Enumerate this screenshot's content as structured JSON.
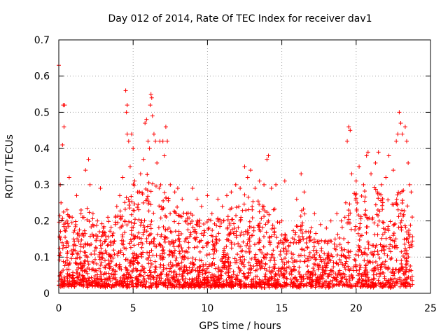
{
  "chart_data": {
    "type": "scatter",
    "title": "Day 012 of 2014, Rate Of TEC Index for receiver dav1",
    "xlabel": "GPS time / hours",
    "ylabel": "ROTI / TECUs",
    "xlim": [
      0,
      25
    ],
    "ylim": [
      0,
      0.7
    ],
    "xticks": [
      0,
      5,
      10,
      15,
      20,
      25
    ],
    "yticks": [
      0,
      0.1,
      0.2,
      0.3,
      0.4,
      0.5,
      0.6,
      0.7
    ],
    "xtick_labels": [
      "0",
      "5",
      "10",
      "15",
      "20",
      "25"
    ],
    "ytick_labels": [
      "0",
      "0.1",
      "0.2",
      "0.3",
      "0.4",
      "0.5",
      "0.6",
      "0.7"
    ],
    "grid": true,
    "marker": "+",
    "color": "#ff0000",
    "series": [
      {
        "name": "dav1",
        "points": [
          [
            0.0,
            0.63
          ],
          [
            0.1,
            0.3
          ],
          [
            0.15,
            0.25
          ],
          [
            0.25,
            0.41
          ],
          [
            0.3,
            0.52
          ],
          [
            0.35,
            0.46
          ],
          [
            0.4,
            0.52
          ],
          [
            0.5,
            0.18
          ],
          [
            0.7,
            0.32
          ],
          [
            0.9,
            0.21
          ],
          [
            1.0,
            0.15
          ],
          [
            1.2,
            0.27
          ],
          [
            1.5,
            0.23
          ],
          [
            1.8,
            0.34
          ],
          [
            2.0,
            0.37
          ],
          [
            2.1,
            0.3
          ],
          [
            2.3,
            0.22
          ],
          [
            2.6,
            0.2
          ],
          [
            2.8,
            0.29
          ],
          [
            3.0,
            0.18
          ],
          [
            3.3,
            0.21
          ],
          [
            3.6,
            0.16
          ],
          [
            3.9,
            0.24
          ],
          [
            4.1,
            0.27
          ],
          [
            4.3,
            0.32
          ],
          [
            4.5,
            0.56
          ],
          [
            4.6,
            0.52
          ],
          [
            4.55,
            0.5
          ],
          [
            4.6,
            0.44
          ],
          [
            4.7,
            0.42
          ],
          [
            4.8,
            0.35
          ],
          [
            4.9,
            0.44
          ],
          [
            5.0,
            0.4
          ],
          [
            5.1,
            0.31
          ],
          [
            5.3,
            0.28
          ],
          [
            5.5,
            0.33
          ],
          [
            5.7,
            0.37
          ],
          [
            5.8,
            0.47
          ],
          [
            5.9,
            0.48
          ],
          [
            6.0,
            0.42
          ],
          [
            6.1,
            0.4
          ],
          [
            6.15,
            0.52
          ],
          [
            6.2,
            0.55
          ],
          [
            6.25,
            0.54
          ],
          [
            6.3,
            0.49
          ],
          [
            6.4,
            0.44
          ],
          [
            6.5,
            0.42
          ],
          [
            6.6,
            0.36
          ],
          [
            6.8,
            0.42
          ],
          [
            7.0,
            0.42
          ],
          [
            7.1,
            0.38
          ],
          [
            7.2,
            0.46
          ],
          [
            7.3,
            0.42
          ],
          [
            7.5,
            0.3
          ],
          [
            7.8,
            0.28
          ],
          [
            8.0,
            0.29
          ],
          [
            8.3,
            0.26
          ],
          [
            8.6,
            0.22
          ],
          [
            9.0,
            0.29
          ],
          [
            9.3,
            0.26
          ],
          [
            9.6,
            0.24
          ],
          [
            10.0,
            0.27
          ],
          [
            10.3,
            0.22
          ],
          [
            10.7,
            0.26
          ],
          [
            11.0,
            0.24
          ],
          [
            11.3,
            0.27
          ],
          [
            11.6,
            0.28
          ],
          [
            11.9,
            0.3
          ],
          [
            12.2,
            0.29
          ],
          [
            12.5,
            0.35
          ],
          [
            12.7,
            0.32
          ],
          [
            12.9,
            0.34
          ],
          [
            13.2,
            0.29
          ],
          [
            13.5,
            0.31
          ],
          [
            13.8,
            0.3
          ],
          [
            14.0,
            0.37
          ],
          [
            14.1,
            0.38
          ],
          [
            14.3,
            0.29
          ],
          [
            14.6,
            0.3
          ],
          [
            15.0,
            0.2
          ],
          [
            15.2,
            0.31
          ],
          [
            15.6,
            0.14
          ],
          [
            16.0,
            0.26
          ],
          [
            16.3,
            0.33
          ],
          [
            16.5,
            0.28
          ],
          [
            16.8,
            0.17
          ],
          [
            17.2,
            0.22
          ],
          [
            17.6,
            0.19
          ],
          [
            18.0,
            0.18
          ],
          [
            18.3,
            0.2
          ],
          [
            18.7,
            0.22
          ],
          [
            19.0,
            0.2
          ],
          [
            19.3,
            0.25
          ],
          [
            19.4,
            0.42
          ],
          [
            19.5,
            0.46
          ],
          [
            19.6,
            0.45
          ],
          [
            19.7,
            0.33
          ],
          [
            20.0,
            0.31
          ],
          [
            20.2,
            0.35
          ],
          [
            20.5,
            0.3
          ],
          [
            20.7,
            0.38
          ],
          [
            20.8,
            0.39
          ],
          [
            21.0,
            0.33
          ],
          [
            21.3,
            0.36
          ],
          [
            21.5,
            0.39
          ],
          [
            21.7,
            0.3
          ],
          [
            22.0,
            0.32
          ],
          [
            22.2,
            0.38
          ],
          [
            22.5,
            0.34
          ],
          [
            22.7,
            0.42
          ],
          [
            22.8,
            0.44
          ],
          [
            22.9,
            0.5
          ],
          [
            23.0,
            0.47
          ],
          [
            23.1,
            0.44
          ],
          [
            23.3,
            0.46
          ],
          [
            23.4,
            0.42
          ],
          [
            23.5,
            0.36
          ],
          [
            23.6,
            0.3
          ],
          [
            23.7,
            0.28
          ]
        ],
        "envelope": [
          [
            0,
            0.22
          ],
          [
            0.5,
            0.24
          ],
          [
            1,
            0.2
          ],
          [
            1.5,
            0.22
          ],
          [
            2,
            0.25
          ],
          [
            2.5,
            0.18
          ],
          [
            3,
            0.19
          ],
          [
            3.5,
            0.2
          ],
          [
            4,
            0.22
          ],
          [
            4.5,
            0.28
          ],
          [
            5,
            0.3
          ],
          [
            5.5,
            0.29
          ],
          [
            6,
            0.33
          ],
          [
            6.5,
            0.32
          ],
          [
            7,
            0.3
          ],
          [
            7.5,
            0.25
          ],
          [
            8,
            0.24
          ],
          [
            8.5,
            0.22
          ],
          [
            9,
            0.22
          ],
          [
            9.5,
            0.2
          ],
          [
            10,
            0.22
          ],
          [
            10.5,
            0.2
          ],
          [
            11,
            0.21
          ],
          [
            11.5,
            0.24
          ],
          [
            12,
            0.26
          ],
          [
            12.5,
            0.27
          ],
          [
            13,
            0.26
          ],
          [
            13.5,
            0.25
          ],
          [
            14,
            0.27
          ],
          [
            14.5,
            0.24
          ],
          [
            15,
            0.18
          ],
          [
            15.5,
            0.14
          ],
          [
            16,
            0.2
          ],
          [
            16.5,
            0.24
          ],
          [
            17,
            0.18
          ],
          [
            17.5,
            0.16
          ],
          [
            18,
            0.15
          ],
          [
            18.5,
            0.16
          ],
          [
            19,
            0.17
          ],
          [
            19.5,
            0.26
          ],
          [
            20,
            0.28
          ],
          [
            20.5,
            0.28
          ],
          [
            21,
            0.28
          ],
          [
            21.5,
            0.3
          ],
          [
            22,
            0.25
          ],
          [
            22.5,
            0.26
          ],
          [
            23,
            0.3
          ],
          [
            23.5,
            0.27
          ],
          [
            23.8,
            0.2
          ]
        ],
        "floor": 0.015
      }
    ]
  }
}
